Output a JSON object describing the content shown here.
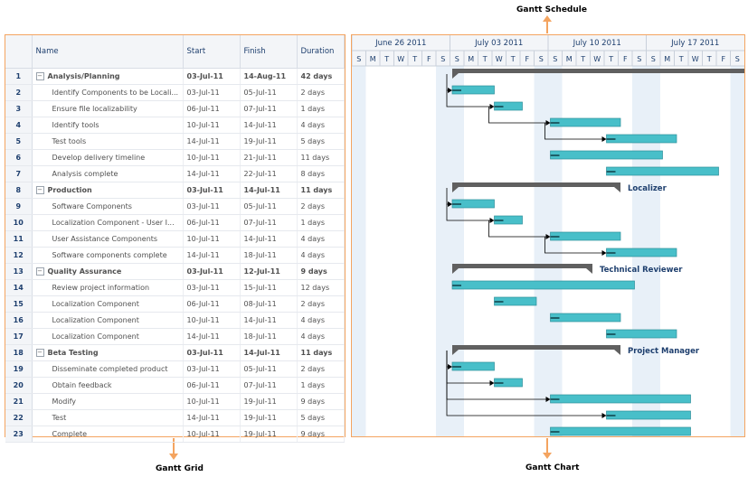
{
  "callouts": {
    "schedule": "Gantt Schedule",
    "grid": "Gantt Grid",
    "chart": "Gantt Chart"
  },
  "grid": {
    "columns": [
      "Name",
      "Start",
      "Finish",
      "Duration"
    ],
    "rows": [
      {
        "id": "1",
        "name": "Analysis/Planning",
        "start": "03-Jul-11",
        "finish": "14-Aug-11",
        "duration": "42 days",
        "parent": true
      },
      {
        "id": "2",
        "name": "Identify Components to be Locali...",
        "start": "03-Jul-11",
        "finish": "05-Jul-11",
        "duration": "2 days",
        "parent": false
      },
      {
        "id": "3",
        "name": "Ensure file localizability",
        "start": "06-Jul-11",
        "finish": "07-Jul-11",
        "duration": "1 days",
        "parent": false
      },
      {
        "id": "4",
        "name": "Identify tools",
        "start": "10-Jul-11",
        "finish": "14-Jul-11",
        "duration": "4 days",
        "parent": false
      },
      {
        "id": "5",
        "name": "Test tools",
        "start": "14-Jul-11",
        "finish": "19-Jul-11",
        "duration": "5 days",
        "parent": false
      },
      {
        "id": "6",
        "name": "Develop delivery timeline",
        "start": "10-Jul-11",
        "finish": "21-Jul-11",
        "duration": "11 days",
        "parent": false
      },
      {
        "id": "7",
        "name": "Analysis complete",
        "start": "14-Jul-11",
        "finish": "22-Jul-11",
        "duration": "8 days",
        "parent": false
      },
      {
        "id": "8",
        "name": "Production",
        "start": "03-Jul-11",
        "finish": "14-Jul-11",
        "duration": "11 days",
        "parent": true
      },
      {
        "id": "9",
        "name": "Software Components",
        "start": "03-Jul-11",
        "finish": "05-Jul-11",
        "duration": "2 days",
        "parent": false
      },
      {
        "id": "10",
        "name": "Localization Component - User I...",
        "start": "06-Jul-11",
        "finish": "07-Jul-11",
        "duration": "1 days",
        "parent": false
      },
      {
        "id": "11",
        "name": "User Assistance Components",
        "start": "10-Jul-11",
        "finish": "14-Jul-11",
        "duration": "4 days",
        "parent": false
      },
      {
        "id": "12",
        "name": "Software components complete",
        "start": "14-Jul-11",
        "finish": "18-Jul-11",
        "duration": "4 days",
        "parent": false
      },
      {
        "id": "13",
        "name": "Quality Assurance",
        "start": "03-Jul-11",
        "finish": "12-Jul-11",
        "duration": "9 days",
        "parent": true
      },
      {
        "id": "14",
        "name": "Review project information",
        "start": "03-Jul-11",
        "finish": "15-Jul-11",
        "duration": "12 days",
        "parent": false
      },
      {
        "id": "15",
        "name": "Localization Component",
        "start": "06-Jul-11",
        "finish": "08-Jul-11",
        "duration": "2 days",
        "parent": false
      },
      {
        "id": "16",
        "name": "Localization Component",
        "start": "10-Jul-11",
        "finish": "14-Jul-11",
        "duration": "4 days",
        "parent": false
      },
      {
        "id": "17",
        "name": "Localization Component",
        "start": "14-Jul-11",
        "finish": "18-Jul-11",
        "duration": "4 days",
        "parent": false
      },
      {
        "id": "18",
        "name": "Beta Testing",
        "start": "03-Jul-11",
        "finish": "14-Jul-11",
        "duration": "11 days",
        "parent": true
      },
      {
        "id": "19",
        "name": "Disseminate completed product",
        "start": "03-Jul-11",
        "finish": "05-Jul-11",
        "duration": "2 days",
        "parent": false
      },
      {
        "id": "20",
        "name": "Obtain feedback",
        "start": "06-Jul-11",
        "finish": "07-Jul-11",
        "duration": "1 days",
        "parent": false
      },
      {
        "id": "21",
        "name": "Modify",
        "start": "10-Jul-11",
        "finish": "19-Jul-11",
        "duration": "9 days",
        "parent": false
      },
      {
        "id": "22",
        "name": "Test",
        "start": "14-Jul-11",
        "finish": "19-Jul-11",
        "duration": "5 days",
        "parent": false
      },
      {
        "id": "23",
        "name": "Complete",
        "start": "10-Jul-11",
        "finish": "19-Jul-11",
        "duration": "9 days",
        "parent": false
      }
    ],
    "expander_glyph": "−"
  },
  "schedule": {
    "weeks": [
      "June 26 2011",
      "July 03 2011",
      "July 10 2011",
      "July 17 2011"
    ],
    "day_letters": [
      "S",
      "M",
      "T",
      "W",
      "T",
      "F",
      "S"
    ],
    "summary_labels": [
      {
        "row": 8,
        "text": "Localizer"
      },
      {
        "row": 13,
        "text": "Technical Reviewer"
      },
      {
        "row": 18,
        "text": "Project Manager"
      }
    ]
  },
  "colors": {
    "border": "#f4a460",
    "bar": "#48bfc9",
    "bar_dark": "#2d8f9a",
    "summary": "#606060",
    "weekend": "#e8f0f8",
    "header_text": "#1e3f6e",
    "label_text": "#1e3f6e"
  },
  "chart_bars": [
    {
      "row": 1,
      "type": "summary",
      "start": 0,
      "end": 23
    },
    {
      "row": 2,
      "type": "task",
      "start": 0,
      "end": 3
    },
    {
      "row": 3,
      "type": "task",
      "start": 3,
      "end": 5
    },
    {
      "row": 4,
      "type": "task",
      "start": 7,
      "end": 12
    },
    {
      "row": 5,
      "type": "task",
      "start": 11,
      "end": 16
    },
    {
      "row": 6,
      "type": "task",
      "start": 7,
      "end": 15
    },
    {
      "row": 7,
      "type": "task",
      "start": 11,
      "end": 19
    },
    {
      "row": 8,
      "type": "summary",
      "start": 0,
      "end": 12
    },
    {
      "row": 9,
      "type": "task",
      "start": 0,
      "end": 3
    },
    {
      "row": 10,
      "type": "task",
      "start": 3,
      "end": 5
    },
    {
      "row": 11,
      "type": "task",
      "start": 7,
      "end": 12
    },
    {
      "row": 12,
      "type": "task",
      "start": 11,
      "end": 16
    },
    {
      "row": 13,
      "type": "summary",
      "start": 0,
      "end": 10
    },
    {
      "row": 14,
      "type": "task",
      "start": 0,
      "end": 13
    },
    {
      "row": 15,
      "type": "task",
      "start": 3,
      "end": 6
    },
    {
      "row": 16,
      "type": "task",
      "start": 7,
      "end": 12
    },
    {
      "row": 17,
      "type": "task",
      "start": 11,
      "end": 16
    },
    {
      "row": 18,
      "type": "summary",
      "start": 0,
      "end": 12
    },
    {
      "row": 19,
      "type": "task",
      "start": 0,
      "end": 3
    },
    {
      "row": 20,
      "type": "task",
      "start": 3,
      "end": 5
    },
    {
      "row": 21,
      "type": "task",
      "start": 7,
      "end": 17
    },
    {
      "row": 22,
      "type": "task",
      "start": 11,
      "end": 17
    },
    {
      "row": 23,
      "type": "task",
      "start": 7,
      "end": 17
    }
  ]
}
